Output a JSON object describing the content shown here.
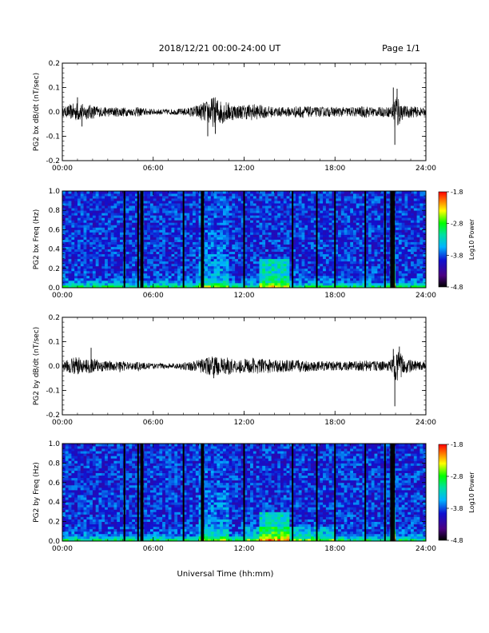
{
  "header": {
    "date_range": "2018/12/21  00:00-24:00 UT",
    "page": "Page 1/1"
  },
  "footer": {
    "xlabel": "Universal Time (hh:mm)"
  },
  "chart_data": [
    {
      "type": "line",
      "ylabel": "PG2 bx dB/dt (nT/sec)",
      "ylim": [
        -0.2,
        0.2
      ],
      "yticks": [
        "0.2",
        "0.1",
        "0.0",
        "-0.1",
        "-0.2"
      ],
      "xlim": [
        0,
        24
      ],
      "xticks": [
        "00:00",
        "06:00",
        "12:00",
        "18:00",
        "24:00"
      ],
      "envelope": {
        "hours": [
          0,
          0.5,
          1,
          1.5,
          2,
          2.5,
          3,
          3.5,
          4,
          4.5,
          5,
          5.5,
          6,
          6.5,
          7,
          7.5,
          8,
          8.5,
          9,
          9.5,
          10,
          10.5,
          11,
          11.5,
          12,
          12.5,
          13,
          13.5,
          14,
          14.5,
          15,
          15.5,
          16,
          16.5,
          17,
          17.5,
          18,
          18.5,
          19,
          19.5,
          20,
          20.5,
          21,
          21.5,
          21.8,
          22,
          22.3,
          22.5,
          23,
          23.5,
          24
        ],
        "amplitude": [
          0.015,
          0.03,
          0.04,
          0.03,
          0.03,
          0.02,
          0.02,
          0.02,
          0.02,
          0.015,
          0.02,
          0.015,
          0.012,
          0.012,
          0.012,
          0.012,
          0.015,
          0.02,
          0.03,
          0.045,
          0.065,
          0.05,
          0.04,
          0.03,
          0.03,
          0.035,
          0.03,
          0.025,
          0.02,
          0.02,
          0.02,
          0.025,
          0.025,
          0.02,
          0.02,
          0.02,
          0.02,
          0.02,
          0.02,
          0.02,
          0.025,
          0.02,
          0.02,
          0.02,
          0.03,
          0.1,
          0.05,
          0.025,
          0.025,
          0.02,
          0.015
        ],
        "spikes": [
          [
            21.95,
            -0.135
          ],
          [
            21.85,
            0.1
          ],
          [
            22.1,
            0.095
          ],
          [
            9.6,
            -0.1
          ],
          [
            10.1,
            -0.09
          ],
          [
            1.3,
            -0.06
          ],
          [
            1.0,
            0.06
          ]
        ]
      }
    },
    {
      "type": "heatmap",
      "ylabel": "PG2 bx Freq (Hz)",
      "ylim": [
        0.0,
        1.0
      ],
      "yticks": [
        "1.0",
        "0.8",
        "0.6",
        "0.4",
        "0.2",
        "0.0"
      ],
      "xlim": [
        0,
        24
      ],
      "xticks": [
        "00:00",
        "06:00",
        "12:00",
        "18:00",
        "24:00"
      ],
      "colorbar": {
        "label": "Log10 Power",
        "ticks": [
          "-1.8",
          "-2.8",
          "-3.8",
          "-4.8"
        ],
        "range": [
          -4.8,
          -1.8
        ]
      },
      "data_gaps_hours": [
        4.1,
        5.0,
        5.2,
        5.3,
        8.0,
        9.2,
        9.3,
        12.0,
        15.2,
        16.8,
        18.0,
        20.0,
        21.3,
        21.7,
        21.8,
        21.9
      ]
    },
    {
      "type": "line",
      "ylabel": "PG2 by dB/dt (nT/sec)",
      "ylim": [
        -0.2,
        0.2
      ],
      "yticks": [
        "0.2",
        "0.1",
        "0.0",
        "-0.1",
        "-0.2"
      ],
      "xlim": [
        0,
        24
      ],
      "xticks": [
        "00:00",
        "06:00",
        "12:00",
        "18:00",
        "24:00"
      ],
      "envelope": {
        "hours": [
          0,
          0.5,
          1,
          1.5,
          2,
          2.5,
          3,
          3.5,
          4,
          4.5,
          5,
          5.5,
          6,
          6.5,
          7,
          7.5,
          8,
          8.5,
          9,
          9.5,
          10,
          10.5,
          11,
          11.5,
          12,
          12.5,
          13,
          13.5,
          14,
          14.5,
          15,
          15.5,
          16,
          16.5,
          17,
          17.5,
          18,
          18.5,
          19,
          19.5,
          20,
          20.5,
          21,
          21.5,
          21.8,
          22,
          22.3,
          22.5,
          23,
          23.5,
          24
        ],
        "amplitude": [
          0.015,
          0.03,
          0.04,
          0.025,
          0.035,
          0.025,
          0.02,
          0.02,
          0.02,
          0.015,
          0.02,
          0.015,
          0.01,
          0.012,
          0.012,
          0.012,
          0.015,
          0.02,
          0.025,
          0.035,
          0.04,
          0.035,
          0.035,
          0.03,
          0.03,
          0.035,
          0.03,
          0.03,
          0.025,
          0.025,
          0.025,
          0.025,
          0.025,
          0.02,
          0.02,
          0.02,
          0.02,
          0.02,
          0.02,
          0.02,
          0.025,
          0.02,
          0.02,
          0.02,
          0.03,
          0.06,
          0.06,
          0.035,
          0.025,
          0.02,
          0.015
        ],
        "spikes": [
          [
            21.95,
            -0.165
          ],
          [
            22.25,
            0.08
          ],
          [
            21.85,
            0.07
          ],
          [
            1.9,
            0.075
          ],
          [
            3.8,
            -0.025
          ],
          [
            10.0,
            -0.05
          ]
        ]
      }
    },
    {
      "type": "heatmap",
      "ylabel": "PG2 by Freq (Hz)",
      "ylim": [
        0.0,
        1.0
      ],
      "yticks": [
        "1.0",
        "0.8",
        "0.6",
        "0.4",
        "0.2",
        "0.0"
      ],
      "xlim": [
        0,
        24
      ],
      "xticks": [
        "00:00",
        "06:00",
        "12:00",
        "18:00",
        "24:00"
      ],
      "colorbar": {
        "label": "Log10 Power",
        "ticks": [
          "-1.8",
          "-2.8",
          "-3.8",
          "-4.8"
        ],
        "range": [
          -4.8,
          -1.8
        ]
      },
      "data_gaps_hours": [
        4.1,
        5.0,
        5.2,
        5.3,
        8.0,
        9.2,
        9.3,
        12.0,
        15.2,
        16.8,
        18.0,
        20.0,
        21.3,
        21.7,
        21.8,
        21.9
      ]
    }
  ]
}
